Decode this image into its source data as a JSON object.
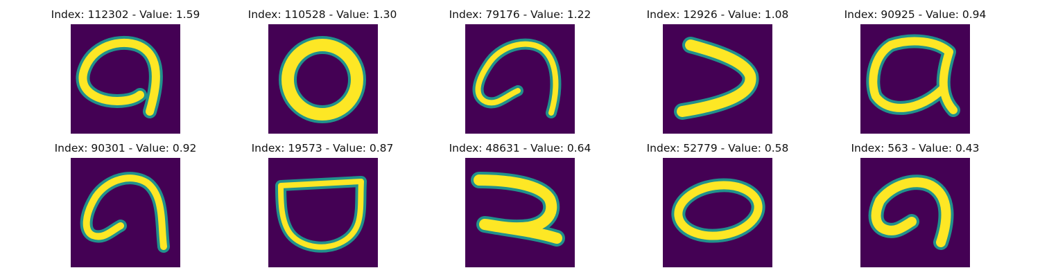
{
  "panels": [
    {
      "title": "Index: 112302 - Value: 1.59",
      "glyph": "hook"
    },
    {
      "title": "Index: 110528 - Value: 1.30",
      "glyph": "ring"
    },
    {
      "title": "Index: 79176 - Value: 1.22",
      "glyph": "hook-thin"
    },
    {
      "title": "Index: 12926 - Value: 1.08",
      "glyph": "chevron"
    },
    {
      "title": "Index: 90925 - Value: 0.94",
      "glyph": "loop-cross"
    },
    {
      "title": "Index: 90301 - Value: 0.92",
      "glyph": "hook-narrow"
    },
    {
      "title": "Index: 19573 - Value: 0.87",
      "glyph": "cup"
    },
    {
      "title": "Index: 48631 - Value: 0.64",
      "glyph": "zig"
    },
    {
      "title": "Index: 52779 - Value: 0.58",
      "glyph": "oval"
    },
    {
      "title": "Index: 563 - Value: 0.43",
      "glyph": "hook-small"
    }
  ],
  "colors": {
    "background": "#440154",
    "edge": "#21918c",
    "stroke": "#fde725",
    "text": "#111111"
  }
}
